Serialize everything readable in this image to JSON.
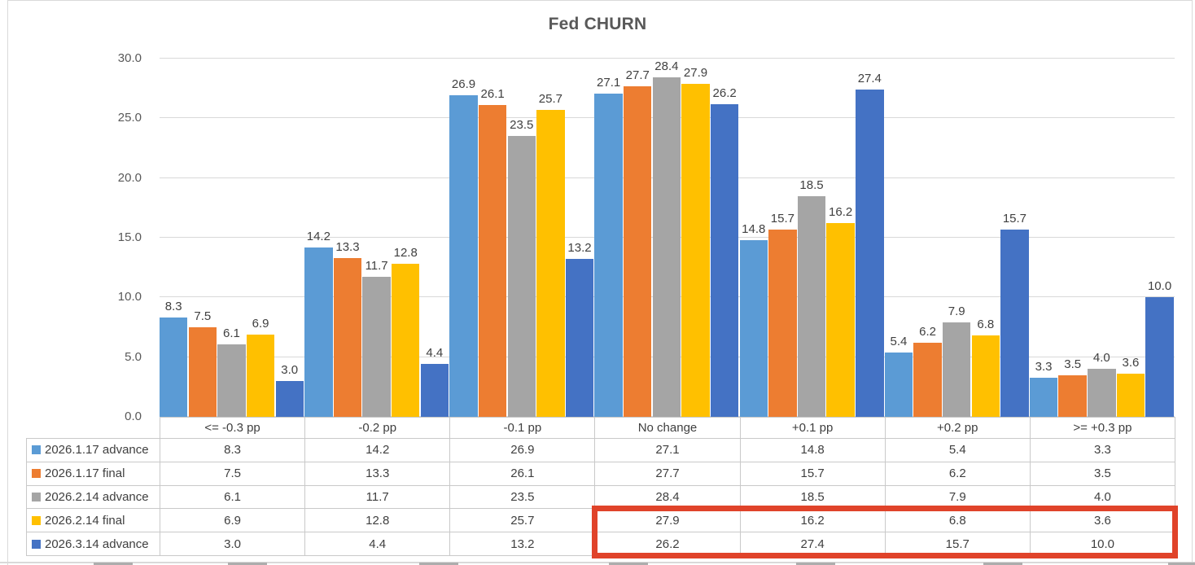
{
  "chart_data": {
    "type": "bar",
    "title": "Fed CHURN",
    "categories": [
      "<= -0.3 pp",
      "-0.2 pp",
      "-0.1 pp",
      "No change",
      "+0.1 pp",
      "+0.2 pp",
      ">= +0.3 pp"
    ],
    "series": [
      {
        "name": "2026.1.17 advance",
        "color": "#5B9BD5",
        "values": [
          8.3,
          14.2,
          26.9,
          27.1,
          14.8,
          5.4,
          3.3
        ]
      },
      {
        "name": "2026.1.17 final",
        "color": "#ED7D31",
        "values": [
          7.5,
          13.3,
          26.1,
          27.7,
          15.7,
          6.2,
          3.5
        ]
      },
      {
        "name": "2026.2.14 advance",
        "color": "#A5A5A5",
        "values": [
          6.1,
          11.7,
          23.5,
          28.4,
          18.5,
          7.9,
          4.0
        ]
      },
      {
        "name": "2026.2.14 final",
        "color": "#FFC000",
        "values": [
          6.9,
          12.8,
          25.7,
          27.9,
          16.2,
          6.8,
          3.6
        ]
      },
      {
        "name": "2026.3.14 advance",
        "color": "#4472C4",
        "values": [
          3.0,
          4.4,
          13.2,
          26.2,
          27.4,
          15.7,
          10.0
        ]
      }
    ],
    "ylim": [
      0,
      30
    ],
    "ytick_labels": [
      "0.0",
      "5.0",
      "10.0",
      "15.0",
      "20.0",
      "25.0",
      "30.0"
    ],
    "grid": true,
    "legend_position": "data-table-left",
    "value_decimals": 1
  },
  "highlight": {
    "color": "#E0432A",
    "series_from": "2026.2.14 final",
    "series_to": "2026.3.14 advance",
    "category_from": "No change",
    "category_to": ">= +0.3 pp"
  },
  "colors": {
    "title_text": "#595959",
    "axis_text": "#595959",
    "data_label_text": "#404040",
    "gridline": "#D9D9D9",
    "table_border": "#C9C9C9"
  }
}
